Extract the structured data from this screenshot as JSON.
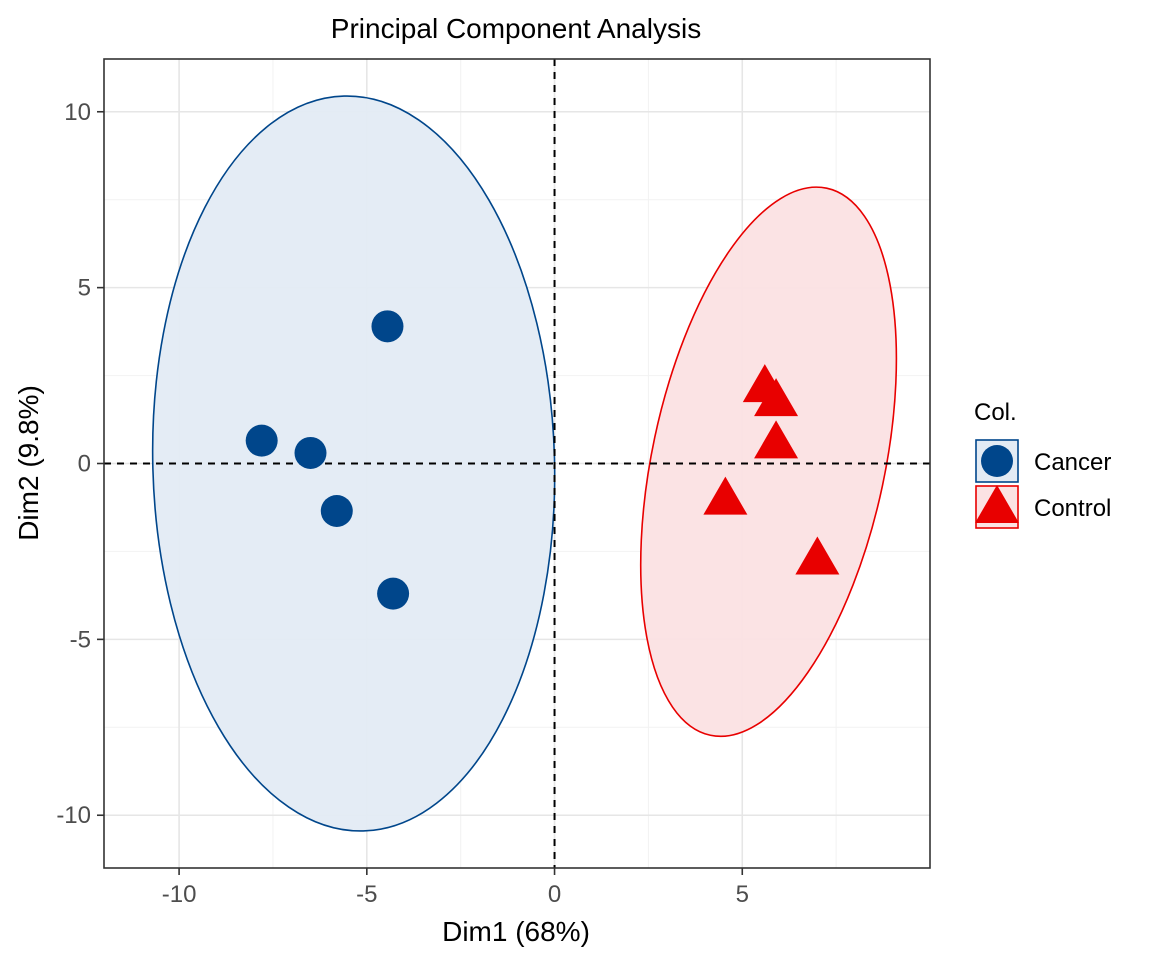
{
  "chart_data": {
    "type": "scatter",
    "title": "Principal Component Analysis",
    "xlabel": "Dim1 (68%)",
    "ylabel": "Dim2 (9.8%)",
    "xlim": [
      -12,
      10
    ],
    "ylim": [
      -11.5,
      11.5
    ],
    "x_ticks": [
      {
        "value": -10,
        "label": "-10"
      },
      {
        "value": -5,
        "label": "-5"
      },
      {
        "value": 0,
        "label": "0"
      },
      {
        "value": 5,
        "label": "5"
      }
    ],
    "y_ticks": [
      {
        "value": 10,
        "label": "10"
      },
      {
        "value": 5,
        "label": "5"
      },
      {
        "value": 0,
        "label": "0"
      },
      {
        "value": -5,
        "label": "-5"
      },
      {
        "value": -10,
        "label": "-10"
      }
    ],
    "grid": true,
    "reference_lines": {
      "x": 0,
      "y": 0,
      "style": "dashed"
    },
    "legend": {
      "title": "Col.",
      "position": "right"
    },
    "series": [
      {
        "name": "Cancer",
        "marker": "circle",
        "color": "#00468b",
        "fill": "#e3ebf4",
        "points": [
          {
            "x": -4.45,
            "y": 3.9
          },
          {
            "x": -7.8,
            "y": 0.65
          },
          {
            "x": -6.5,
            "y": 0.3
          },
          {
            "x": -5.8,
            "y": -1.35
          },
          {
            "x": -4.3,
            "y": -3.7
          }
        ],
        "ellipse": {
          "cx": -5.35,
          "cy": 0.0,
          "rx": 5.35,
          "ry": 10.45,
          "angle_deg": -1.5
        }
      },
      {
        "name": "Control",
        "marker": "triangle",
        "color": "#e80000",
        "fill": "#fbe2e3",
        "points": [
          {
            "x": 5.6,
            "y": 2.2
          },
          {
            "x": 5.9,
            "y": 1.8
          },
          {
            "x": 5.9,
            "y": 0.6
          },
          {
            "x": 4.55,
            "y": -1.0
          },
          {
            "x": 7.0,
            "y": -2.7
          }
        ],
        "ellipse": {
          "cx": 5.7,
          "cy": 0.05,
          "rx": 3.1,
          "ry": 7.95,
          "angle_deg": 12
        }
      }
    ]
  }
}
